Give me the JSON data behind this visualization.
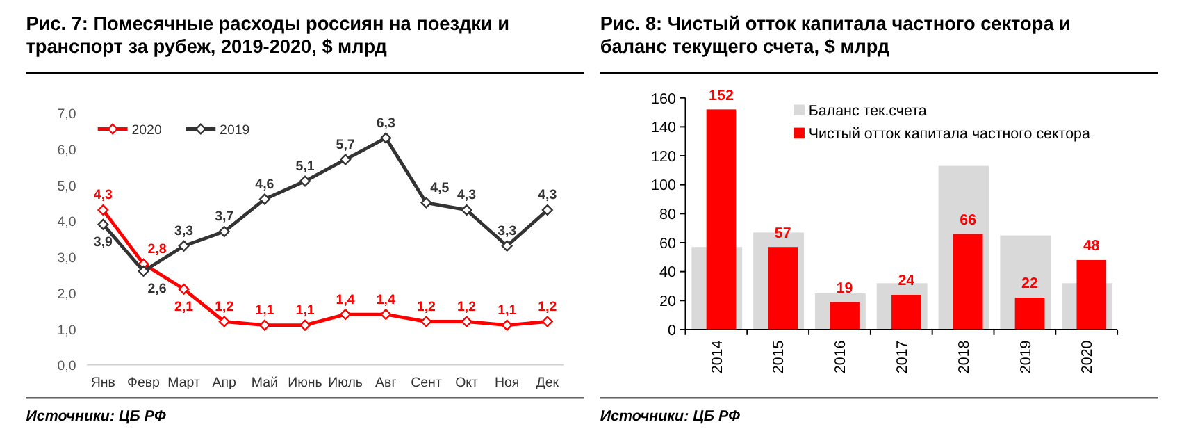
{
  "chart_data": [
    {
      "type": "line",
      "title": "Рис. 7: Помесячные расходы россиян на поездки и транспорт за рубеж, 2019-2020, $ млрд",
      "categories": [
        "Янв",
        "Февр",
        "Март",
        "Апр",
        "Май",
        "Июнь",
        "Июль",
        "Авг",
        "Сент",
        "Окт",
        "Ноя",
        "Дек"
      ],
      "series": [
        {
          "name": "2020",
          "color": "#ff0000",
          "values": [
            4.3,
            2.8,
            2.1,
            1.2,
            1.1,
            1.1,
            1.4,
            1.4,
            1.2,
            1.2,
            1.1,
            1.2
          ],
          "value_labels": [
            "4,3",
            "2,8",
            "2,1",
            "1,2",
            "1,1",
            "1,1",
            "1,4",
            "1,4",
            "1,2",
            "1,2",
            "1,1",
            "1,2"
          ]
        },
        {
          "name": "2019",
          "color": "#333333",
          "values": [
            3.9,
            2.6,
            3.3,
            3.7,
            4.6,
            5.1,
            5.7,
            6.3,
            4.5,
            4.3,
            3.3,
            4.3
          ],
          "value_labels": [
            "3,9",
            "2,6",
            "3,3",
            "3,7",
            "4,6",
            "5,1",
            "5,7",
            "6,3",
            "4,5",
            "4,3",
            "3,3",
            "4,3"
          ]
        }
      ],
      "ylim": [
        0,
        7
      ],
      "yticks": [
        {
          "value": 0,
          "label": "0,0"
        },
        {
          "value": 1,
          "label": "1,0"
        },
        {
          "value": 2,
          "label": "2,0"
        },
        {
          "value": 3,
          "label": "3,0"
        },
        {
          "value": 4,
          "label": "4,0"
        },
        {
          "value": 5,
          "label": "5,0"
        },
        {
          "value": 6,
          "label": "6,0"
        },
        {
          "value": 7,
          "label": "7,0"
        }
      ],
      "marker": "diamond",
      "legend": "top left",
      "grid": false,
      "annotations": [
        "Источники: ЦБ РФ"
      ]
    },
    {
      "type": "bar",
      "title": "Рис. 8: Чистый отток капитала частного сектора и баланс текущего счета, $ млрд",
      "categories": [
        "2014",
        "2015",
        "2016",
        "2017",
        "2018",
        "2019",
        "2020"
      ],
      "series": [
        {
          "name": "Баланс тек.счета",
          "color": "#d9d9d9",
          "values": [
            57,
            67,
            25,
            32,
            113,
            65,
            32
          ]
        },
        {
          "name": "Чистый отток капитала частного сектора",
          "color": "#ff0000",
          "values": [
            152,
            57,
            19,
            24,
            66,
            22,
            48
          ],
          "value_labels": [
            "152",
            "57",
            "19",
            "24",
            "66",
            "22",
            "48"
          ]
        }
      ],
      "ylim": [
        0,
        160
      ],
      "yticks": [
        0,
        20,
        40,
        60,
        80,
        100,
        120,
        140,
        160
      ],
      "legend": "top right",
      "grid": false,
      "annotations": [
        "Источники: ЦБ РФ"
      ]
    }
  ]
}
